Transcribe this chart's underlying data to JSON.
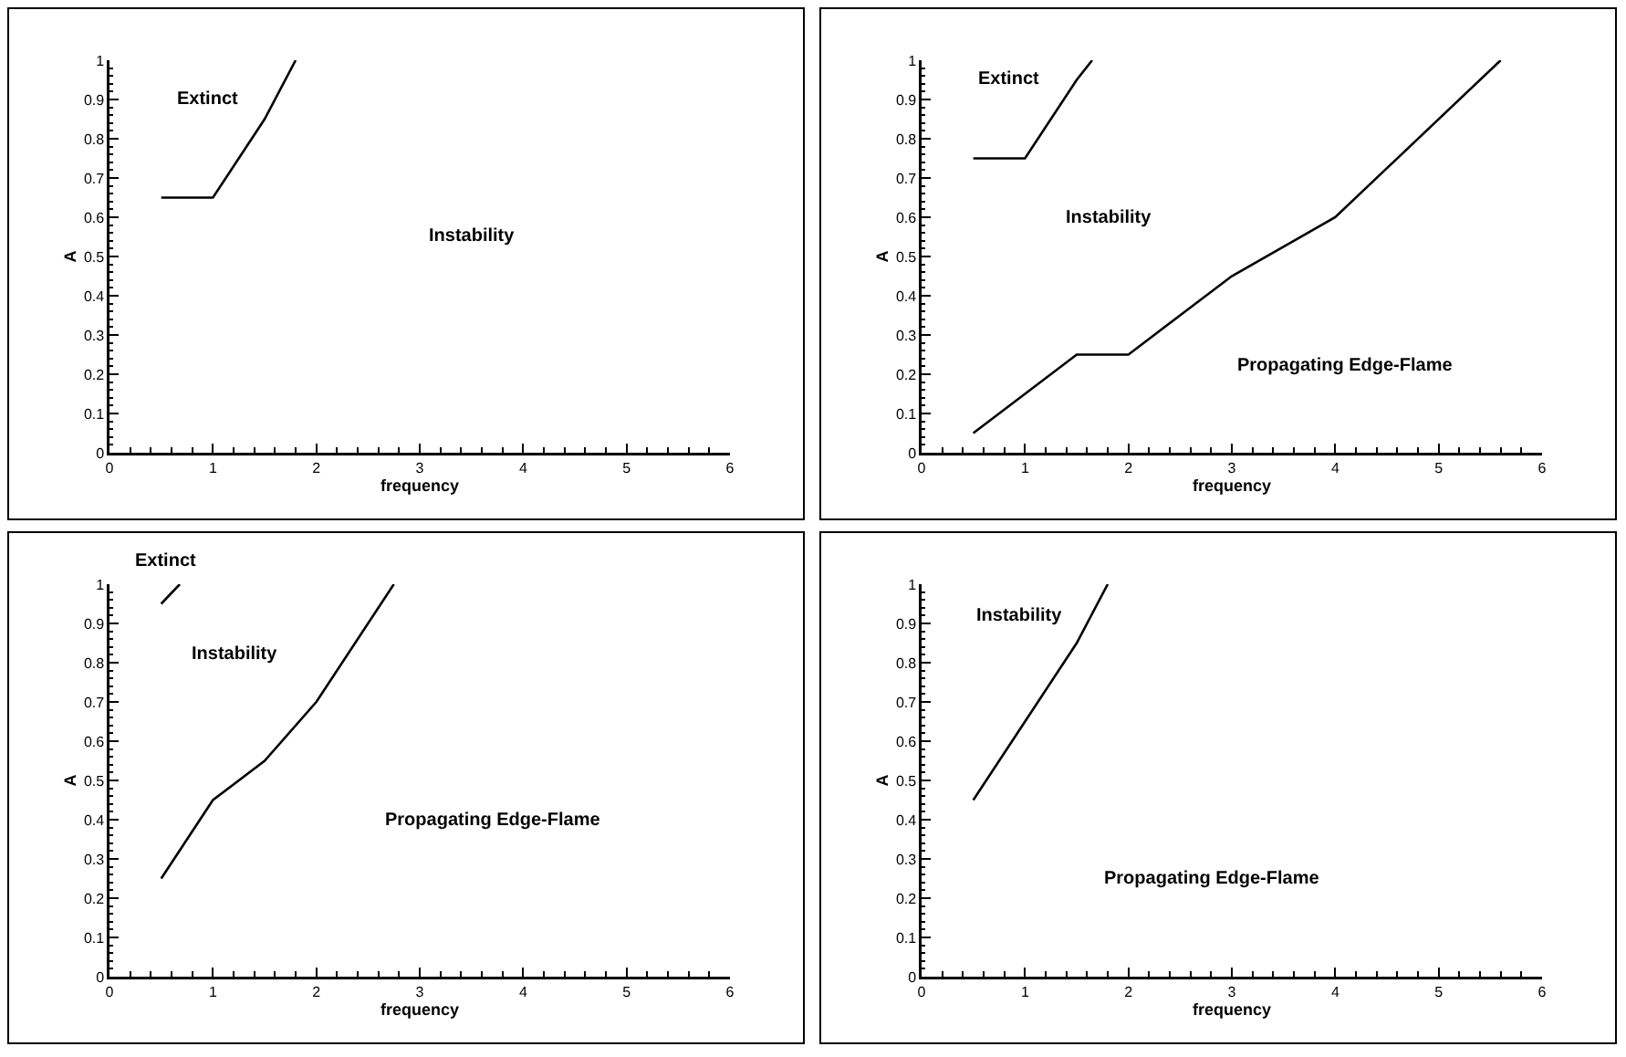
{
  "chart_data": [
    {
      "type": "line",
      "xlabel": "frequency",
      "ylabel": "A",
      "xlim": [
        0,
        6
      ],
      "ylim": [
        0,
        1
      ],
      "xticks": [
        0,
        1,
        2,
        3,
        4,
        5,
        6
      ],
      "yticks": [
        0,
        0.1,
        0.2,
        0.3,
        0.4,
        0.5,
        0.6,
        0.7,
        0.8,
        0.9,
        1
      ],
      "grid": false,
      "marker": "none",
      "line_style": "solid",
      "series": [
        {
          "color": "#000000",
          "x": [
            0.5,
            1,
            1.5,
            1.8
          ],
          "values": [
            0.65,
            0.65,
            0.85,
            1
          ]
        }
      ],
      "annotations": [
        "Extinct",
        "Instability"
      ]
    },
    {
      "type": "line",
      "xlabel": "frequency",
      "ylabel": "A",
      "xlim": [
        0,
        6
      ],
      "ylim": [
        0,
        1
      ],
      "xticks": [
        0,
        1,
        2,
        3,
        4,
        5,
        6
      ],
      "yticks": [
        0,
        0.1,
        0.2,
        0.3,
        0.4,
        0.5,
        0.6,
        0.7,
        0.8,
        0.9,
        1
      ],
      "grid": false,
      "marker": "none",
      "line_style": "solid",
      "series": [
        {
          "color": "#000000",
          "x": [
            0.5,
            1,
            1.5,
            1.65
          ],
          "values": [
            0.75,
            0.75,
            0.95,
            1
          ]
        },
        {
          "color": "#000000",
          "x": [
            0.5,
            1.5,
            2,
            3,
            4,
            5.6
          ],
          "values": [
            0.05,
            0.25,
            0.25,
            0.45,
            0.6,
            1
          ]
        }
      ],
      "annotations": [
        "Extinct",
        "Instability",
        "Propagating Edge-Flame"
      ]
    },
    {
      "type": "line",
      "xlabel": "frequency",
      "ylabel": "A",
      "xlim": [
        0,
        6
      ],
      "ylim": [
        0,
        1
      ],
      "xticks": [
        0,
        1,
        2,
        3,
        4,
        5,
        6
      ],
      "yticks": [
        0,
        0.1,
        0.2,
        0.3,
        0.4,
        0.5,
        0.6,
        0.7,
        0.8,
        0.9,
        1
      ],
      "grid": false,
      "marker": "none",
      "line_style": "solid",
      "series": [
        {
          "color": "#000000",
          "x": [
            0.5,
            0.68
          ],
          "values": [
            0.95,
            1
          ]
        },
        {
          "color": "#000000",
          "x": [
            0.5,
            1,
            1.5,
            2,
            2.75
          ],
          "values": [
            0.25,
            0.45,
            0.55,
            0.7,
            1
          ]
        }
      ],
      "annotations": [
        "Extinct",
        "Instability",
        "Propagating Edge-Flame"
      ]
    },
    {
      "type": "line",
      "xlabel": "frequency",
      "ylabel": "A",
      "xlim": [
        0,
        6
      ],
      "ylim": [
        0,
        1
      ],
      "xticks": [
        0,
        1,
        2,
        3,
        4,
        5,
        6
      ],
      "yticks": [
        0,
        0.1,
        0.2,
        0.3,
        0.4,
        0.5,
        0.6,
        0.7,
        0.8,
        0.9,
        1
      ],
      "grid": false,
      "marker": "none",
      "line_style": "solid",
      "series": [
        {
          "color": "#000000",
          "x": [
            0.5,
            1,
            1.5,
            1.8
          ],
          "values": [
            0.45,
            0.65,
            0.85,
            1
          ]
        }
      ],
      "annotations": [
        "Instability",
        "Propagating Edge-Flame"
      ]
    }
  ]
}
